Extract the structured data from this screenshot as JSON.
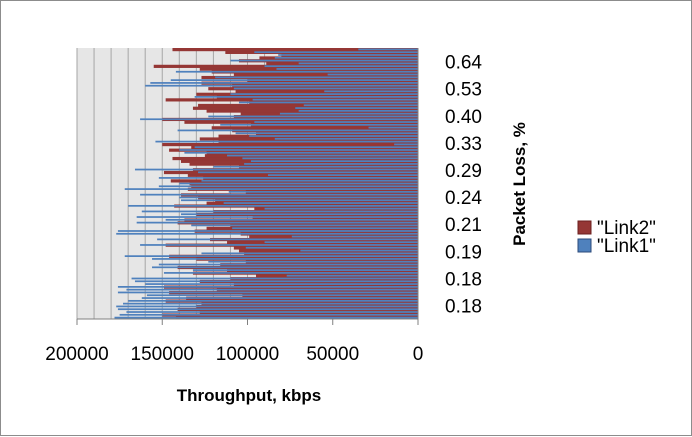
{
  "chart_data": {
    "type": "bar",
    "orientation": "horizontal",
    "stacked": false,
    "x_reversed": true,
    "xlabel": "Throughput, kbps",
    "ylabel": "Packet Loss, %",
    "xlim": [
      0,
      200000
    ],
    "x_ticks": [
      "200000",
      "150000",
      "100000",
      "50000",
      "0"
    ],
    "x_tick_values": [
      200000,
      150000,
      100000,
      50000,
      0
    ],
    "grid_step": 10000,
    "y_ticks": [
      "0.18",
      "0.18",
      "0.19",
      "0.21",
      "0.24",
      "0.29",
      "0.33",
      "0.40",
      "0.53",
      "0.64"
    ],
    "legend_position": "right",
    "series": [
      {
        "name": "\"Link2\"",
        "color": "#953735",
        "values": [
          142000,
          150000,
          128000,
          141000,
          130000,
          127000,
          148000,
          136000,
          103000,
          146000,
          118000,
          149000,
          108000,
          128000,
          110000,
          95000,
          132000,
          112000,
          141000,
          116000,
          101000,
          130000,
          146000,
          102000,
          105000,
          108000,
          148000,
          112000,
          122000,
          99000,
          104000,
          131000,
          124000,
          110000,
          141000,
          137000,
          97000,
          130000,
          120000,
          96000,
          143000,
          124000,
          119000,
          129000,
          139000,
          101000,
          135000,
          133000,
          134000,
          145000,
          126000,
          135000,
          149000,
          132000,
          105000,
          134000,
          139000,
          144000,
          125000,
          124000,
          146000,
          133000,
          150000,
          117000,
          128000,
          117000,
          95000,
          109000,
          121000,
          98000,
          137000,
          150000,
          108000,
          104000,
          124000,
          132000,
          129000,
          99000,
          148000,
          118000,
          130000,
          107000,
          123000,
          109000,
          127000,
          100000,
          127000,
          108000,
          121000,
          128000,
          155000,
          89000,
          105000,
          93000,
          80000,
          113000,
          144000
        ]
      },
      {
        "name": "\"Link1\"",
        "color": "#4f81bd",
        "values": [
          178000,
          175000,
          171000,
          176000,
          177000,
          173000,
          170000,
          162000,
          159000,
          176000,
          171000,
          176000,
          160000,
          166000,
          168000,
          77000,
          149000,
          132000,
          156000,
          152000,
          123000,
          156000,
          172000,
          127000,
          69000,
          101000,
          163000,
          90000,
          153000,
          74000,
          177000,
          176000,
          109000,
          133000,
          165000,
          148000,
          165000,
          139000,
          162000,
          90000,
          170000,
          114000,
          139000,
          140000,
          163000,
          111000,
          172000,
          152000,
          140000,
          127000,
          152000,
          88000,
          129000,
          166000,
          120000,
          102000,
          98000,
          103000,
          112000,
          137000,
          140000,
          131000,
          14000,
          154000,
          84000,
          99000,
          107000,
          141000,
          29000,
          116000,
          96000,
          163000,
          123000,
          81000,
          70000,
          72000,
          67000,
          105000,
          97000,
          131000,
          110000,
          55000,
          108000,
          160000,
          157000,
          145000,
          119000,
          53000,
          142000,
          83000,
          90000,
          70000,
          110000,
          84000,
          82000,
          96000,
          35000
        ]
      }
    ]
  }
}
